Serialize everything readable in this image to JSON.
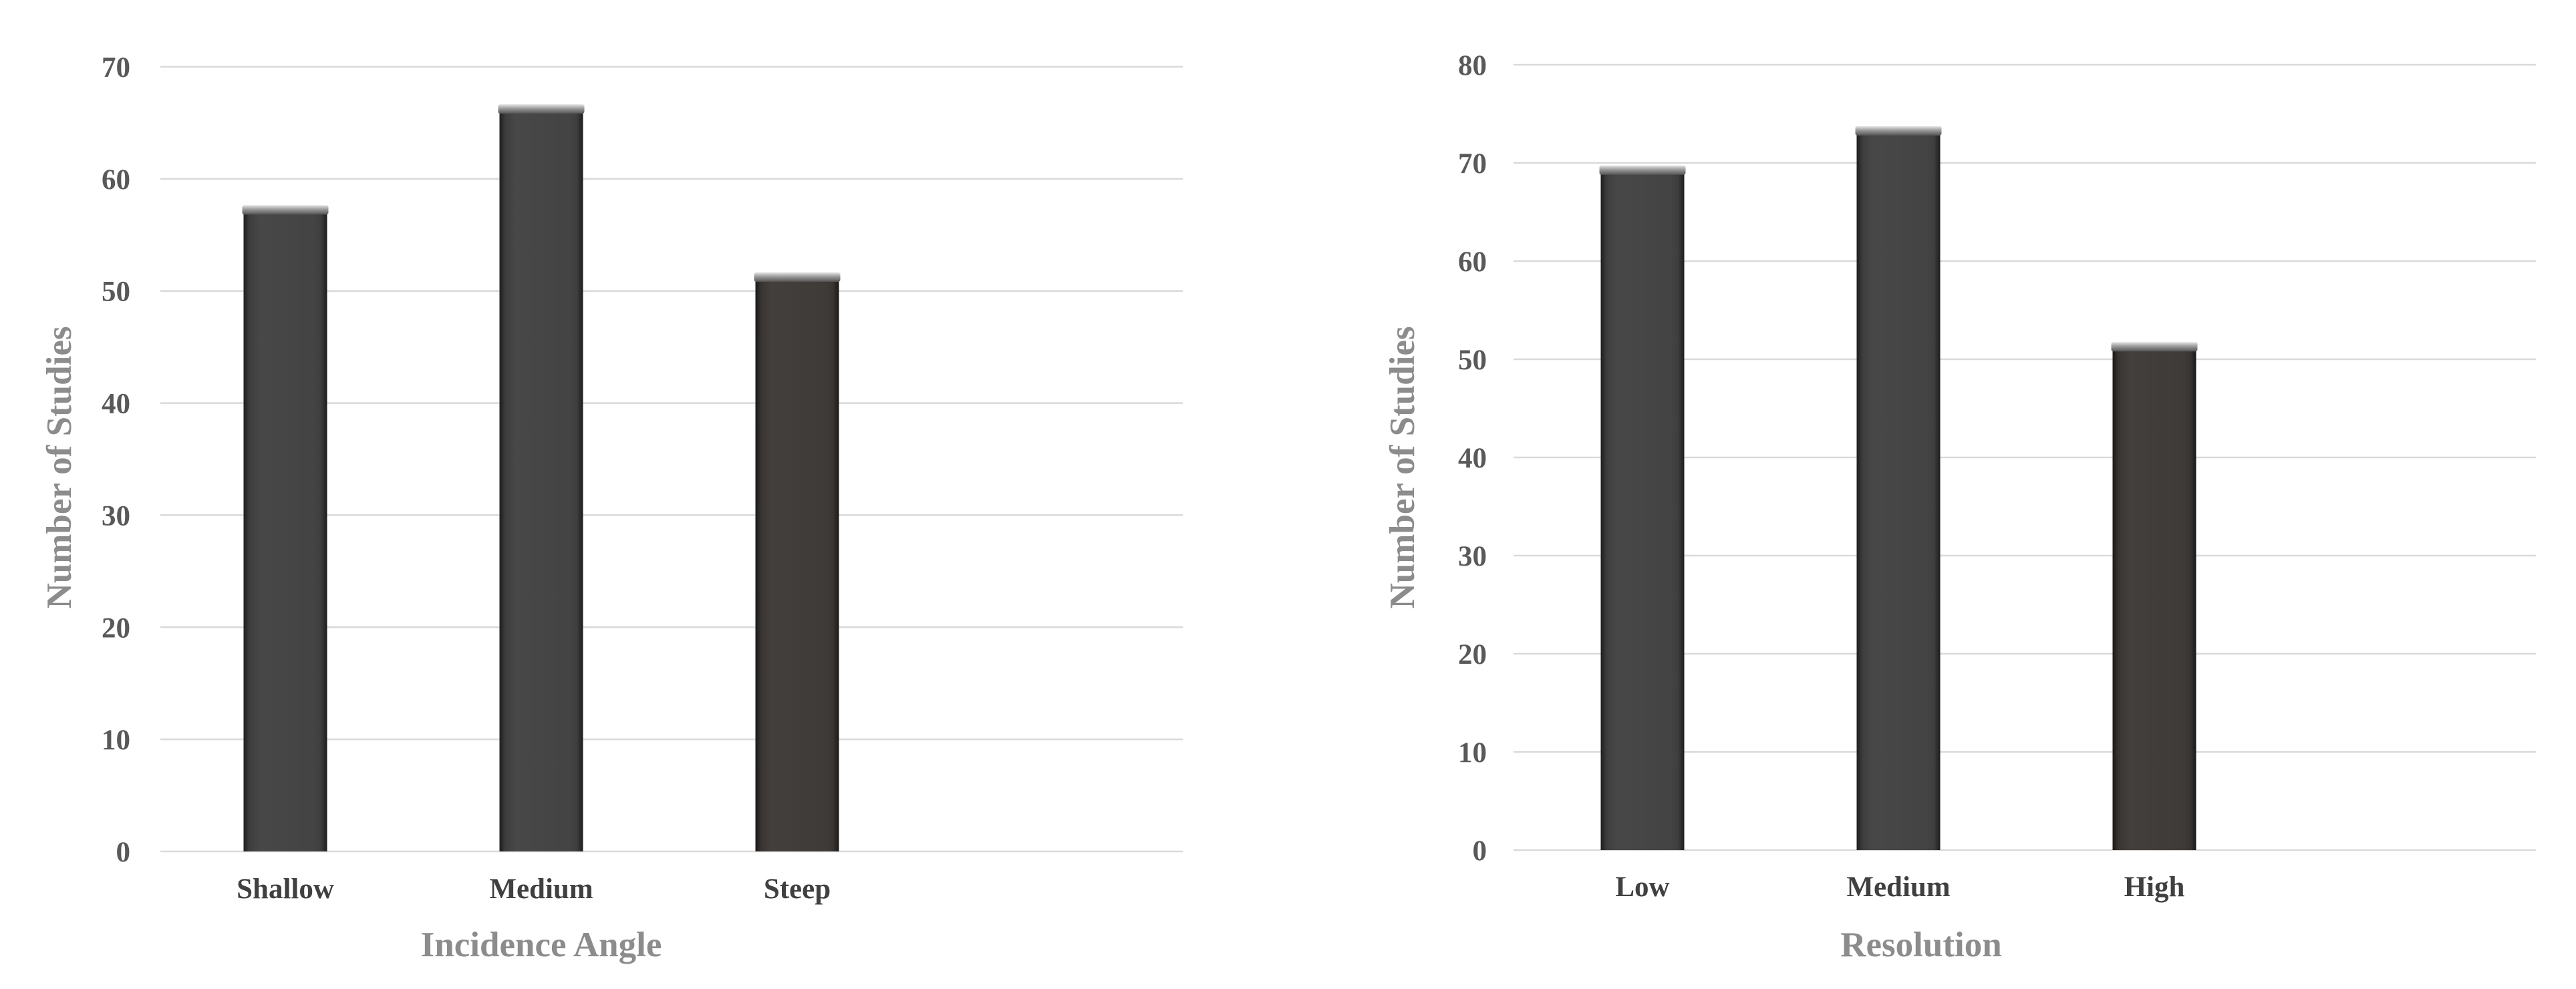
{
  "chart_data": [
    {
      "type": "bar",
      "categories": [
        "Shallow",
        "Medium",
        "Steep"
      ],
      "values": [
        57,
        66,
        51
      ],
      "xlabel": "Incidence Angle",
      "ylabel": "Number of Studies",
      "ylim": [
        0,
        70
      ],
      "yticks": [
        0,
        10,
        20,
        30,
        40,
        50,
        60,
        70
      ],
      "grid": true,
      "legend": "none",
      "bar_colors": [
        "#404040",
        "#404040",
        "#3b3735"
      ]
    },
    {
      "type": "bar",
      "categories": [
        "Low",
        "Medium",
        "High"
      ],
      "values": [
        69,
        73,
        51
      ],
      "xlabel": "Resolution",
      "ylabel": "Number of Studies",
      "ylim": [
        0,
        80
      ],
      "yticks": [
        0,
        10,
        20,
        30,
        40,
        50,
        60,
        70,
        80
      ],
      "grid": true,
      "legend": "none",
      "bar_colors": [
        "#404040",
        "#404040",
        "#3b3735"
      ]
    }
  ]
}
